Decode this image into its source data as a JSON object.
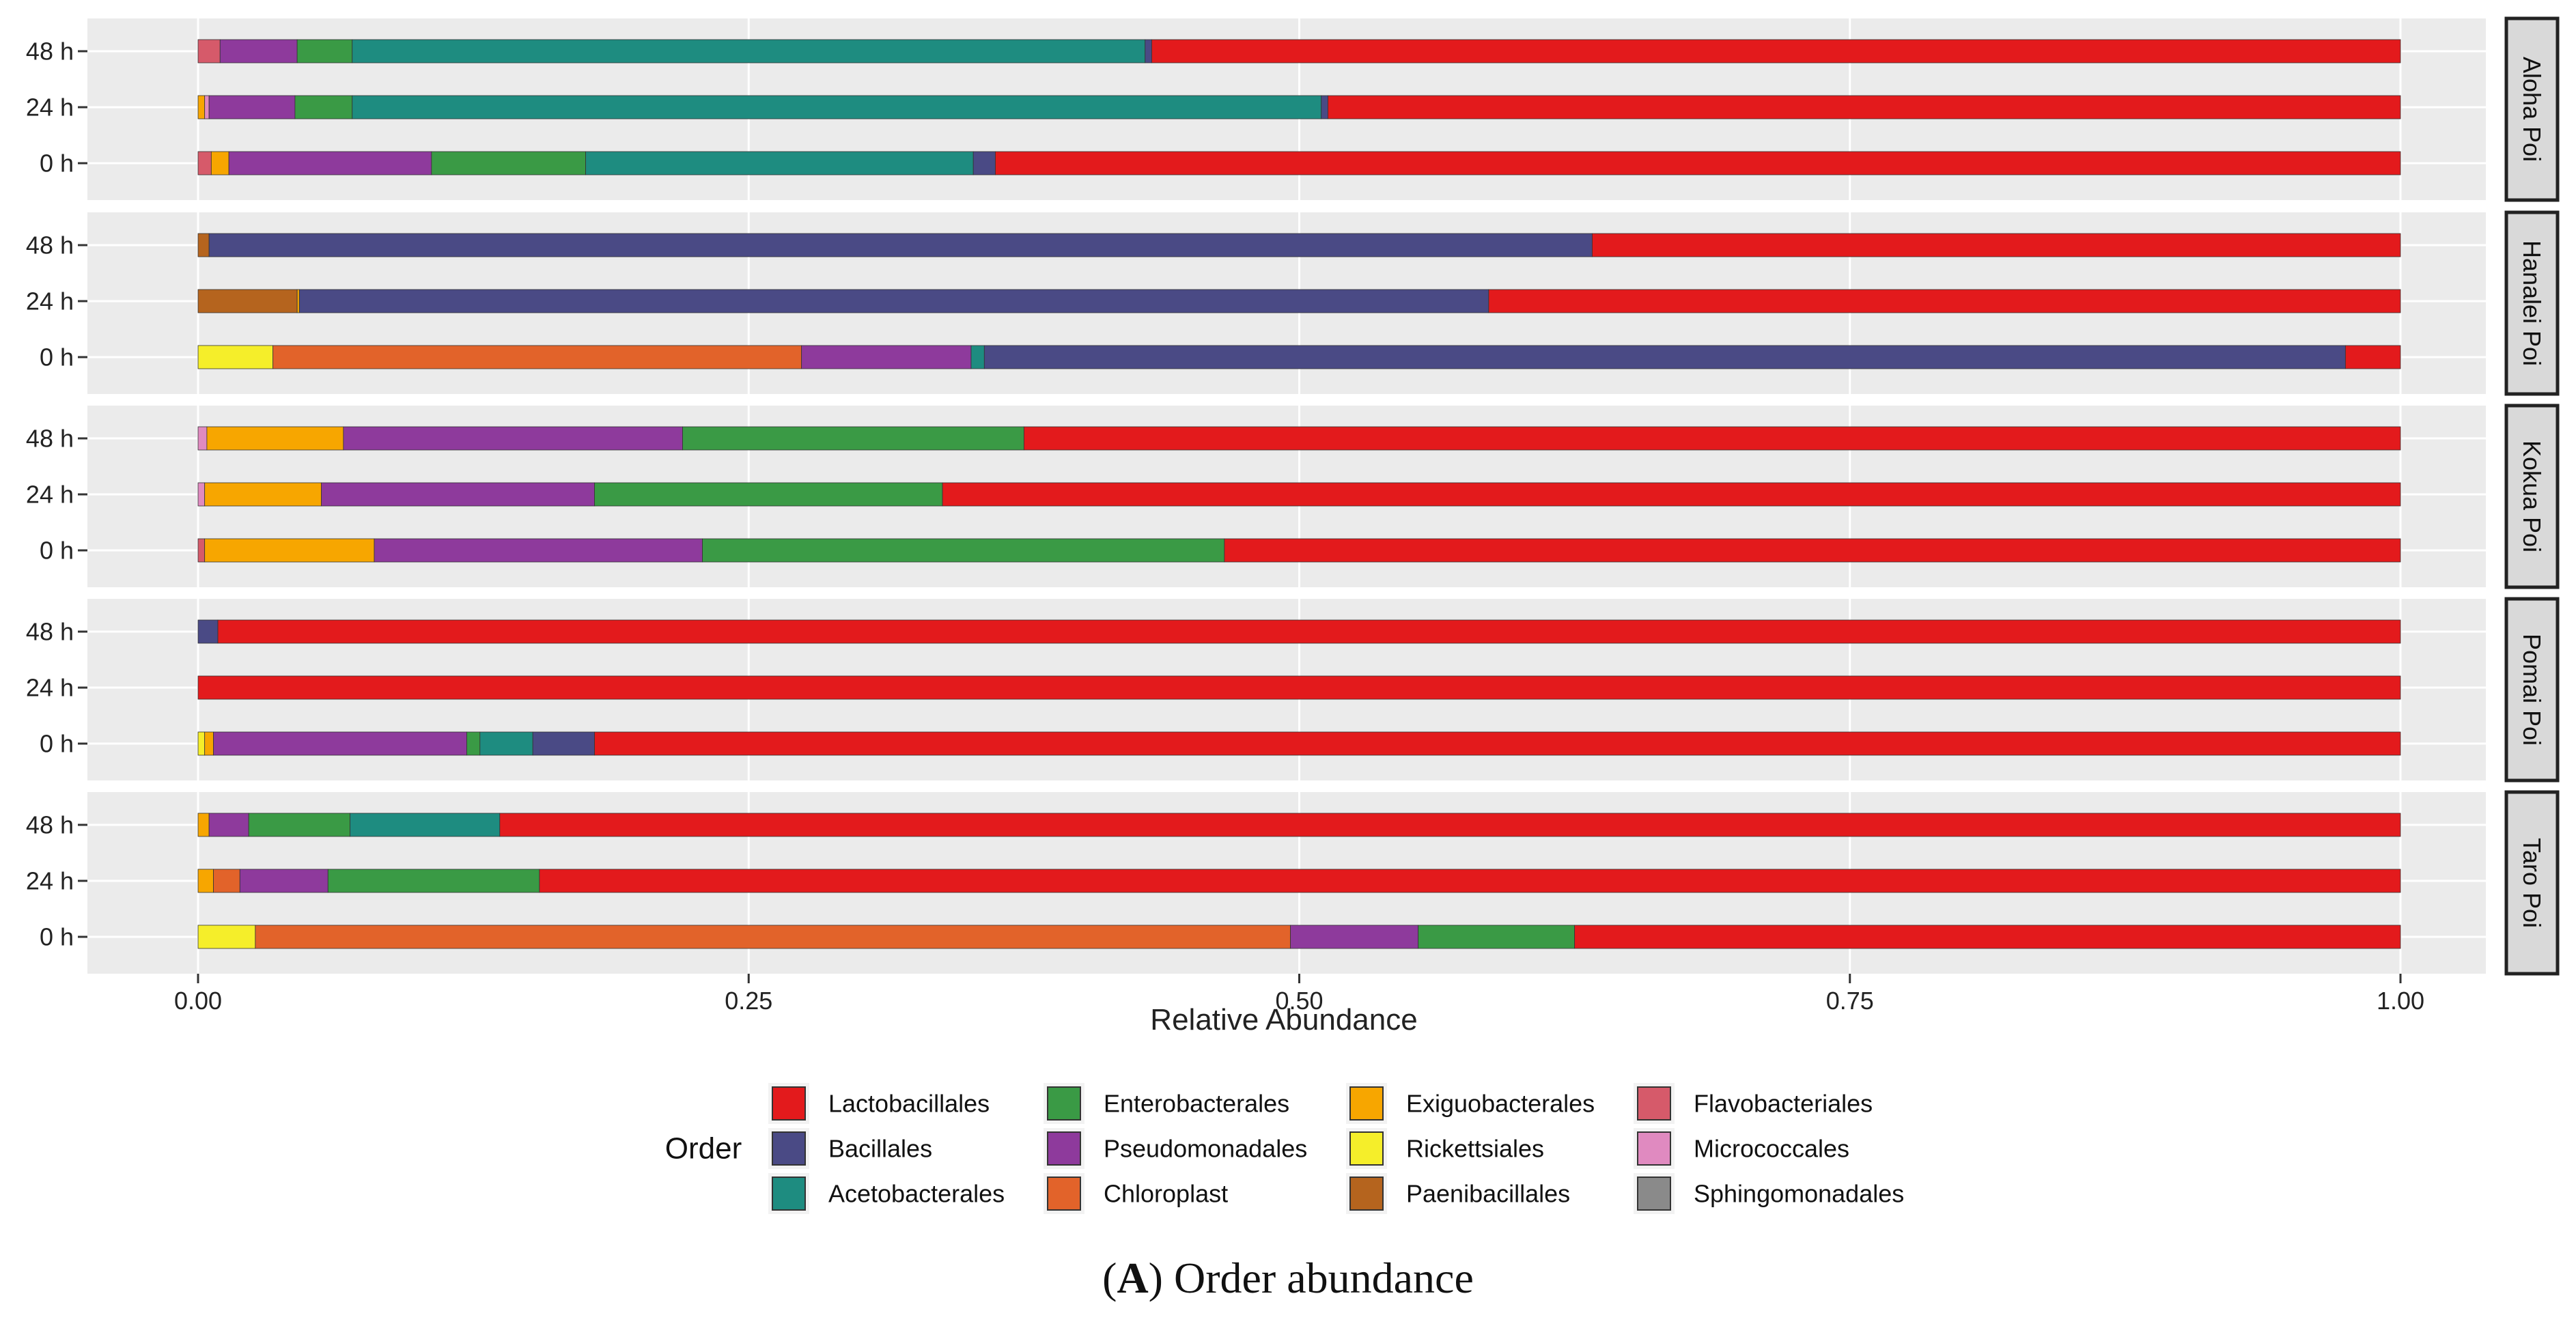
{
  "chart_data": {
    "type": "bar",
    "orientation": "horizontal",
    "stacked": true,
    "xlabel": "Relative Abundance",
    "xlim": [
      0,
      1
    ],
    "xticks": [
      "0.00",
      "0.25",
      "0.50",
      "0.75",
      "1.00"
    ],
    "xtick_values": [
      0,
      0.25,
      0.5,
      0.75,
      1.0
    ],
    "legend_title": "Order",
    "orders": [
      {
        "name": "Lactobacillales",
        "color": "#E31A1C"
      },
      {
        "name": "Bacillales",
        "color": "#4A4A85"
      },
      {
        "name": "Acetobacterales",
        "color": "#1E8C80"
      },
      {
        "name": "Enterobacterales",
        "color": "#3A9A45"
      },
      {
        "name": "Pseudomonadales",
        "color": "#8E3A9C"
      },
      {
        "name": "Chloroplast",
        "color": "#E2632A"
      },
      {
        "name": "Exiguobacterales",
        "color": "#F7A600"
      },
      {
        "name": "Rickettsiales",
        "color": "#F5EE2A"
      },
      {
        "name": "Paenibacillales",
        "color": "#B5641E"
      },
      {
        "name": "Flavobacteriales",
        "color": "#D65A6A"
      },
      {
        "name": "Micrococcales",
        "color": "#E08AC0"
      },
      {
        "name": "Sphingomonadales",
        "color": "#8A8A8A"
      }
    ],
    "facets": [
      {
        "name": "Aloha Poi",
        "rows": [
          {
            "label": "48 h",
            "segments": [
              [
                "Flavobacteriales",
                0.01
              ],
              [
                "Pseudomonadales",
                0.035
              ],
              [
                "Enterobacterales",
                0.025
              ],
              [
                "Acetobacterales",
                0.36
              ],
              [
                "Bacillales",
                0.003
              ],
              [
                "Lactobacillales",
                0.567
              ]
            ]
          },
          {
            "label": "24 h",
            "segments": [
              [
                "Exiguobacterales",
                0.003
              ],
              [
                "Micrococcales",
                0.002
              ],
              [
                "Pseudomonadales",
                0.039
              ],
              [
                "Enterobacterales",
                0.026
              ],
              [
                "Acetobacterales",
                0.44
              ],
              [
                "Bacillales",
                0.003
              ],
              [
                "Lactobacillales",
                0.487
              ]
            ]
          },
          {
            "label": "0 h",
            "segments": [
              [
                "Flavobacteriales",
                0.006
              ],
              [
                "Exiguobacterales",
                0.008
              ],
              [
                "Pseudomonadales",
                0.092
              ],
              [
                "Enterobacterales",
                0.07
              ],
              [
                "Acetobacterales",
                0.176
              ],
              [
                "Bacillales",
                0.01
              ],
              [
                "Lactobacillales",
                0.638
              ]
            ]
          }
        ]
      },
      {
        "name": "Hanalei Poi",
        "rows": [
          {
            "label": "48 h",
            "segments": [
              [
                "Paenibacillales",
                0.005
              ],
              [
                "Bacillales",
                0.628
              ],
              [
                "Lactobacillales",
                0.367
              ]
            ]
          },
          {
            "label": "24 h",
            "segments": [
              [
                "Paenibacillales",
                0.045
              ],
              [
                "Exiguobacterales",
                0.001
              ],
              [
                "Bacillales",
                0.54
              ],
              [
                "Lactobacillales",
                0.414
              ]
            ]
          },
          {
            "label": "0 h",
            "segments": [
              [
                "Rickettsiales",
                0.034
              ],
              [
                "Chloroplast",
                0.24
              ],
              [
                "Pseudomonadales",
                0.077
              ],
              [
                "Acetobacterales",
                0.006
              ],
              [
                "Bacillales",
                0.618
              ],
              [
                "Lactobacillales",
                0.025
              ]
            ]
          }
        ]
      },
      {
        "name": "Kokua Poi",
        "rows": [
          {
            "label": "48 h",
            "segments": [
              [
                "Micrococcales",
                0.004
              ],
              [
                "Exiguobacterales",
                0.062
              ],
              [
                "Pseudomonadales",
                0.154
              ],
              [
                "Enterobacterales",
                0.155
              ],
              [
                "Lactobacillales",
                0.625
              ]
            ]
          },
          {
            "label": "24 h",
            "segments": [
              [
                "Micrococcales",
                0.003
              ],
              [
                "Exiguobacterales",
                0.053
              ],
              [
                "Pseudomonadales",
                0.124
              ],
              [
                "Enterobacterales",
                0.158
              ],
              [
                "Lactobacillales",
                0.662
              ]
            ]
          },
          {
            "label": "0 h",
            "segments": [
              [
                "Flavobacteriales",
                0.003
              ],
              [
                "Exiguobacterales",
                0.077
              ],
              [
                "Pseudomonadales",
                0.149
              ],
              [
                "Enterobacterales",
                0.237
              ],
              [
                "Lactobacillales",
                0.534
              ]
            ]
          }
        ]
      },
      {
        "name": "Pomai Poi",
        "rows": [
          {
            "label": "48 h",
            "segments": [
              [
                "Bacillales",
                0.009
              ],
              [
                "Lactobacillales",
                0.991
              ]
            ]
          },
          {
            "label": "24 h",
            "segments": [
              [
                "Lactobacillales",
                1.0
              ]
            ]
          },
          {
            "label": "0 h",
            "segments": [
              [
                "Rickettsiales",
                0.003
              ],
              [
                "Exiguobacterales",
                0.004
              ],
              [
                "Pseudomonadales",
                0.115
              ],
              [
                "Enterobacterales",
                0.006
              ],
              [
                "Acetobacterales",
                0.024
              ],
              [
                "Bacillales",
                0.028
              ],
              [
                "Lactobacillales",
                0.82
              ]
            ]
          }
        ]
      },
      {
        "name": "Taro Poi",
        "rows": [
          {
            "label": "48 h",
            "segments": [
              [
                "Exiguobacterales",
                0.005
              ],
              [
                "Pseudomonadales",
                0.018
              ],
              [
                "Enterobacterales",
                0.046
              ],
              [
                "Acetobacterales",
                0.068
              ],
              [
                "Lactobacillales",
                0.863
              ]
            ]
          },
          {
            "label": "24 h",
            "segments": [
              [
                "Exiguobacterales",
                0.007
              ],
              [
                "Chloroplast",
                0.012
              ],
              [
                "Pseudomonadales",
                0.04
              ],
              [
                "Enterobacterales",
                0.096
              ],
              [
                "Lactobacillales",
                0.845
              ]
            ]
          },
          {
            "label": "0 h",
            "segments": [
              [
                "Rickettsiales",
                0.026
              ],
              [
                "Chloroplast",
                0.47
              ],
              [
                "Pseudomonadales",
                0.058
              ],
              [
                "Enterobacterales",
                0.071
              ],
              [
                "Lactobacillales",
                0.375
              ]
            ]
          }
        ]
      }
    ]
  },
  "caption": {
    "letter": "A",
    "text": " Order abundance"
  }
}
